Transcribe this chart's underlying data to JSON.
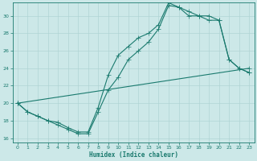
{
  "xlabel": "Humidex (Indice chaleur)",
  "bg_color": "#cce8e8",
  "line_color": "#1a7a6e",
  "grid_color": "#b0d4d4",
  "xlim": [
    -0.5,
    23.5
  ],
  "ylim": [
    15.5,
    31.5
  ],
  "xticks": [
    0,
    1,
    2,
    3,
    4,
    5,
    6,
    7,
    8,
    9,
    10,
    11,
    12,
    13,
    14,
    15,
    16,
    17,
    18,
    19,
    20,
    21,
    22,
    23
  ],
  "yticks": [
    16,
    18,
    20,
    22,
    24,
    26,
    28,
    30
  ],
  "line1_x": [
    0,
    1,
    2,
    3,
    4,
    5,
    6,
    7,
    8,
    9,
    10,
    11,
    12,
    13,
    14,
    15,
    16,
    17,
    18,
    19,
    20,
    21,
    22,
    23
  ],
  "line1_y": [
    20,
    19,
    18.5,
    18,
    17.5,
    17,
    16.5,
    16.5,
    19,
    21.5,
    23,
    25,
    26,
    27,
    28.5,
    31.2,
    31.0,
    30.5,
    30.0,
    30.0,
    29.5,
    25.0,
    24.0,
    23.5
  ],
  "line2_x": [
    0,
    1,
    2,
    3,
    4,
    5,
    6,
    7,
    8,
    9,
    10,
    11,
    12,
    13,
    14,
    15,
    16,
    17,
    18,
    19,
    20,
    21,
    22,
    23
  ],
  "line2_y": [
    20,
    19,
    18.5,
    18,
    17.8,
    17.2,
    16.7,
    16.7,
    19.5,
    23.2,
    25.5,
    26.5,
    27.5,
    28.0,
    29.0,
    31.5,
    31.0,
    30.0,
    30.0,
    29.5,
    29.5,
    25.0,
    24.0,
    23.5
  ],
  "line3_x": [
    0,
    23
  ],
  "line3_y": [
    20,
    24
  ]
}
